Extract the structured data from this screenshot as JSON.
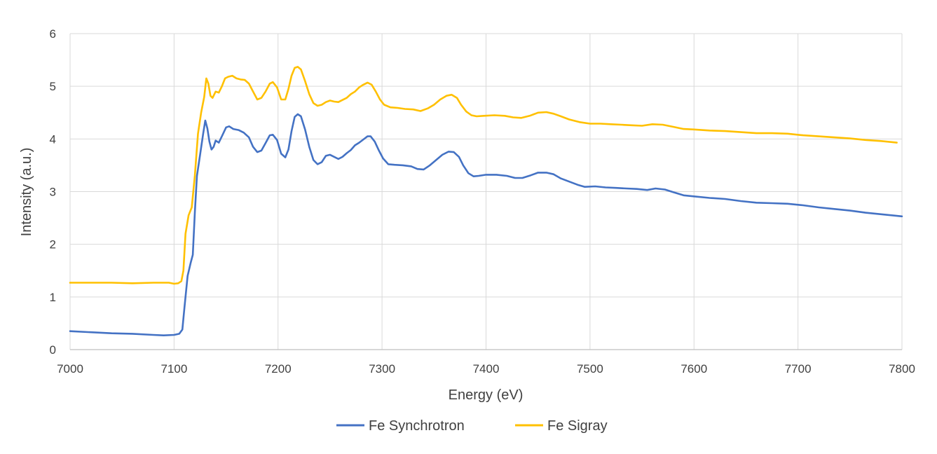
{
  "chart_data": {
    "type": "line",
    "title": "",
    "xlabel": "Energy (eV)",
    "ylabel": "Intensity (a.u.)",
    "xlim": [
      7000,
      7800
    ],
    "ylim": [
      0,
      6
    ],
    "xticks": [
      7000,
      7100,
      7200,
      7300,
      7400,
      7500,
      7600,
      7700,
      7800
    ],
    "yticks": [
      0,
      1,
      2,
      3,
      4,
      5,
      6
    ],
    "grid": true,
    "legend_position": "bottom",
    "series": [
      {
        "name": "Fe Synchrotron",
        "color": "#4472C4",
        "points": [
          [
            7000,
            0.35
          ],
          [
            7020,
            0.33
          ],
          [
            7040,
            0.31
          ],
          [
            7060,
            0.3
          ],
          [
            7080,
            0.28
          ],
          [
            7090,
            0.27
          ],
          [
            7100,
            0.28
          ],
          [
            7105,
            0.3
          ],
          [
            7108,
            0.38
          ],
          [
            7110,
            0.8
          ],
          [
            7113,
            1.4
          ],
          [
            7116,
            1.65
          ],
          [
            7118,
            1.8
          ],
          [
            7120,
            2.6
          ],
          [
            7122,
            3.3
          ],
          [
            7125,
            3.7
          ],
          [
            7128,
            4.1
          ],
          [
            7130,
            4.35
          ],
          [
            7132,
            4.2
          ],
          [
            7134,
            3.95
          ],
          [
            7136,
            3.8
          ],
          [
            7138,
            3.85
          ],
          [
            7140,
            3.97
          ],
          [
            7143,
            3.93
          ],
          [
            7146,
            4.05
          ],
          [
            7150,
            4.22
          ],
          [
            7153,
            4.24
          ],
          [
            7157,
            4.19
          ],
          [
            7162,
            4.17
          ],
          [
            7167,
            4.12
          ],
          [
            7172,
            4.03
          ],
          [
            7176,
            3.85
          ],
          [
            7180,
            3.75
          ],
          [
            7184,
            3.78
          ],
          [
            7188,
            3.92
          ],
          [
            7192,
            4.07
          ],
          [
            7195,
            4.08
          ],
          [
            7199,
            3.98
          ],
          [
            7203,
            3.72
          ],
          [
            7207,
            3.65
          ],
          [
            7210,
            3.8
          ],
          [
            7213,
            4.15
          ],
          [
            7216,
            4.42
          ],
          [
            7219,
            4.47
          ],
          [
            7222,
            4.43
          ],
          [
            7226,
            4.18
          ],
          [
            7230,
            3.85
          ],
          [
            7234,
            3.6
          ],
          [
            7238,
            3.52
          ],
          [
            7242,
            3.56
          ],
          [
            7246,
            3.68
          ],
          [
            7250,
            3.7
          ],
          [
            7254,
            3.66
          ],
          [
            7258,
            3.62
          ],
          [
            7262,
            3.66
          ],
          [
            7266,
            3.73
          ],
          [
            7270,
            3.79
          ],
          [
            7274,
            3.88
          ],
          [
            7278,
            3.93
          ],
          [
            7282,
            3.99
          ],
          [
            7286,
            4.05
          ],
          [
            7289,
            4.05
          ],
          [
            7293,
            3.95
          ],
          [
            7297,
            3.78
          ],
          [
            7301,
            3.63
          ],
          [
            7306,
            3.52
          ],
          [
            7312,
            3.51
          ],
          [
            7320,
            3.5
          ],
          [
            7328,
            3.48
          ],
          [
            7334,
            3.43
          ],
          [
            7340,
            3.42
          ],
          [
            7346,
            3.5
          ],
          [
            7352,
            3.6
          ],
          [
            7358,
            3.7
          ],
          [
            7364,
            3.76
          ],
          [
            7369,
            3.75
          ],
          [
            7374,
            3.66
          ],
          [
            7378,
            3.5
          ],
          [
            7383,
            3.35
          ],
          [
            7388,
            3.29
          ],
          [
            7393,
            3.3
          ],
          [
            7400,
            3.32
          ],
          [
            7410,
            3.32
          ],
          [
            7420,
            3.3
          ],
          [
            7428,
            3.26
          ],
          [
            7435,
            3.26
          ],
          [
            7443,
            3.31
          ],
          [
            7450,
            3.36
          ],
          [
            7458,
            3.36
          ],
          [
            7465,
            3.33
          ],
          [
            7472,
            3.25
          ],
          [
            7480,
            3.19
          ],
          [
            7488,
            3.13
          ],
          [
            7495,
            3.09
          ],
          [
            7505,
            3.1
          ],
          [
            7515,
            3.08
          ],
          [
            7525,
            3.07
          ],
          [
            7535,
            3.06
          ],
          [
            7545,
            3.05
          ],
          [
            7555,
            3.03
          ],
          [
            7563,
            3.06
          ],
          [
            7572,
            3.04
          ],
          [
            7580,
            2.99
          ],
          [
            7590,
            2.93
          ],
          [
            7600,
            2.91
          ],
          [
            7615,
            2.88
          ],
          [
            7630,
            2.86
          ],
          [
            7645,
            2.82
          ],
          [
            7660,
            2.79
          ],
          [
            7675,
            2.78
          ],
          [
            7690,
            2.77
          ],
          [
            7705,
            2.74
          ],
          [
            7720,
            2.7
          ],
          [
            7735,
            2.67
          ],
          [
            7750,
            2.64
          ],
          [
            7765,
            2.6
          ],
          [
            7780,
            2.57
          ],
          [
            7800,
            2.53
          ]
        ]
      },
      {
        "name": "Fe Sigray",
        "color": "#FFC000",
        "points": [
          [
            7000,
            1.27
          ],
          [
            7020,
            1.27
          ],
          [
            7040,
            1.27
          ],
          [
            7060,
            1.26
          ],
          [
            7080,
            1.27
          ],
          [
            7095,
            1.27
          ],
          [
            7100,
            1.25
          ],
          [
            7104,
            1.26
          ],
          [
            7107,
            1.3
          ],
          [
            7109,
            1.5
          ],
          [
            7111,
            2.2
          ],
          [
            7114,
            2.55
          ],
          [
            7117,
            2.7
          ],
          [
            7120,
            3.3
          ],
          [
            7123,
            4.1
          ],
          [
            7126,
            4.5
          ],
          [
            7129,
            4.8
          ],
          [
            7131,
            5.15
          ],
          [
            7133,
            5.05
          ],
          [
            7135,
            4.82
          ],
          [
            7137,
            4.78
          ],
          [
            7140,
            4.9
          ],
          [
            7143,
            4.88
          ],
          [
            7146,
            5.0
          ],
          [
            7149,
            5.15
          ],
          [
            7152,
            5.18
          ],
          [
            7156,
            5.2
          ],
          [
            7160,
            5.15
          ],
          [
            7164,
            5.13
          ],
          [
            7168,
            5.12
          ],
          [
            7172,
            5.05
          ],
          [
            7176,
            4.9
          ],
          [
            7180,
            4.75
          ],
          [
            7184,
            4.78
          ],
          [
            7188,
            4.9
          ],
          [
            7192,
            5.05
          ],
          [
            7195,
            5.08
          ],
          [
            7199,
            4.98
          ],
          [
            7203,
            4.75
          ],
          [
            7207,
            4.75
          ],
          [
            7210,
            4.95
          ],
          [
            7213,
            5.2
          ],
          [
            7216,
            5.35
          ],
          [
            7219,
            5.37
          ],
          [
            7222,
            5.32
          ],
          [
            7226,
            5.1
          ],
          [
            7230,
            4.85
          ],
          [
            7234,
            4.68
          ],
          [
            7238,
            4.63
          ],
          [
            7242,
            4.65
          ],
          [
            7246,
            4.7
          ],
          [
            7250,
            4.73
          ],
          [
            7254,
            4.71
          ],
          [
            7258,
            4.7
          ],
          [
            7262,
            4.74
          ],
          [
            7266,
            4.78
          ],
          [
            7270,
            4.85
          ],
          [
            7274,
            4.9
          ],
          [
            7278,
            4.98
          ],
          [
            7282,
            5.03
          ],
          [
            7286,
            5.07
          ],
          [
            7290,
            5.03
          ],
          [
            7294,
            4.9
          ],
          [
            7298,
            4.75
          ],
          [
            7302,
            4.65
          ],
          [
            7308,
            4.6
          ],
          [
            7315,
            4.59
          ],
          [
            7322,
            4.57
          ],
          [
            7330,
            4.56
          ],
          [
            7337,
            4.53
          ],
          [
            7344,
            4.58
          ],
          [
            7350,
            4.65
          ],
          [
            7356,
            4.75
          ],
          [
            7362,
            4.82
          ],
          [
            7367,
            4.84
          ],
          [
            7372,
            4.78
          ],
          [
            7376,
            4.65
          ],
          [
            7381,
            4.52
          ],
          [
            7386,
            4.45
          ],
          [
            7391,
            4.43
          ],
          [
            7398,
            4.44
          ],
          [
            7408,
            4.45
          ],
          [
            7418,
            4.44
          ],
          [
            7426,
            4.41
          ],
          [
            7434,
            4.4
          ],
          [
            7442,
            4.44
          ],
          [
            7450,
            4.5
          ],
          [
            7458,
            4.51
          ],
          [
            7465,
            4.48
          ],
          [
            7472,
            4.43
          ],
          [
            7480,
            4.37
          ],
          [
            7490,
            4.32
          ],
          [
            7500,
            4.29
          ],
          [
            7510,
            4.29
          ],
          [
            7520,
            4.28
          ],
          [
            7530,
            4.27
          ],
          [
            7540,
            4.26
          ],
          [
            7550,
            4.25
          ],
          [
            7560,
            4.28
          ],
          [
            7570,
            4.27
          ],
          [
            7580,
            4.23
          ],
          [
            7590,
            4.19
          ],
          [
            7600,
            4.18
          ],
          [
            7615,
            4.16
          ],
          [
            7630,
            4.15
          ],
          [
            7645,
            4.13
          ],
          [
            7660,
            4.11
          ],
          [
            7675,
            4.11
          ],
          [
            7690,
            4.1
          ],
          [
            7705,
            4.07
          ],
          [
            7720,
            4.05
          ],
          [
            7735,
            4.03
          ],
          [
            7750,
            4.01
          ],
          [
            7765,
            3.98
          ],
          [
            7780,
            3.96
          ],
          [
            7795,
            3.93
          ]
        ]
      }
    ]
  }
}
